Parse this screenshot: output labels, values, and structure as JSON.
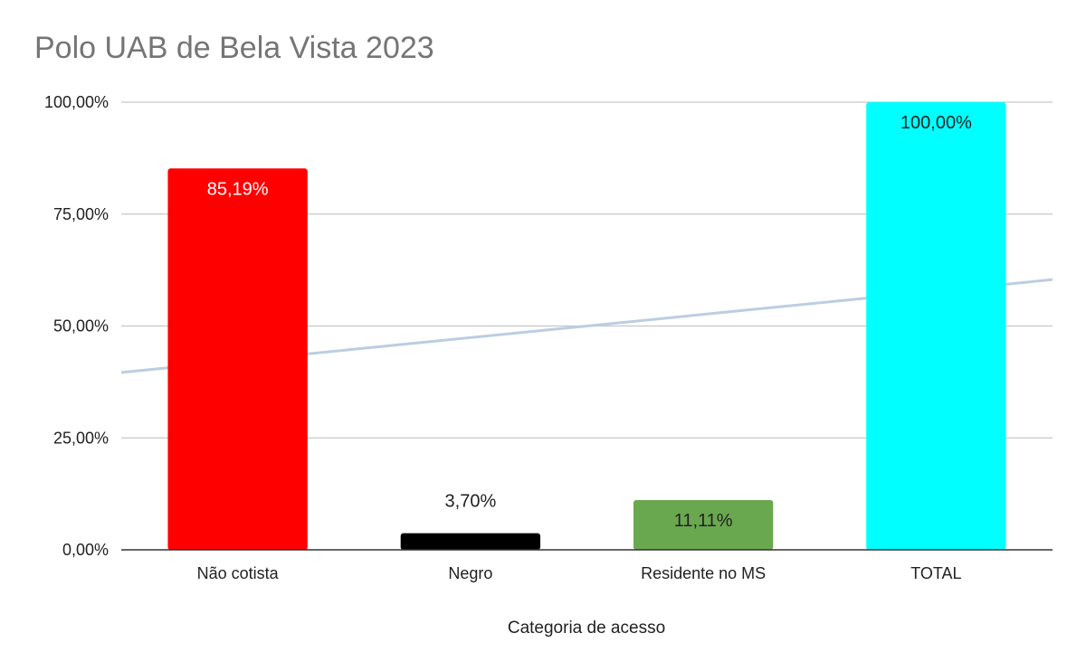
{
  "chart_data": {
    "type": "bar",
    "title": "Polo UAB de Bela Vista 2023",
    "xlabel": "Categoria de acesso",
    "ylabel": "",
    "categories": [
      "Não cotista",
      "Negro",
      "Residente no MS",
      "TOTAL"
    ],
    "values": [
      85.19,
      3.7,
      11.11,
      100.0
    ],
    "value_labels": [
      "85,19%",
      "3,70%",
      "11,11%",
      "100,00%"
    ],
    "bar_colors": [
      "#ff0000",
      "#000000",
      "#6aa84f",
      "#00ffff"
    ],
    "value_label_colors": [
      "#ffffff",
      "#222222",
      "#222222",
      "#222222"
    ],
    "value_label_position": [
      "inside",
      "above",
      "inside",
      "inside"
    ],
    "ylim": [
      0,
      100
    ],
    "yticks": [
      0,
      25,
      50,
      75,
      100
    ],
    "ytick_labels": [
      "0,00%",
      "25,00%",
      "50,00%",
      "75,00%",
      "100,00%"
    ],
    "trendline": {
      "type": "linear",
      "color": "#b7cbe0"
    },
    "grid": true,
    "legend": "none"
  }
}
